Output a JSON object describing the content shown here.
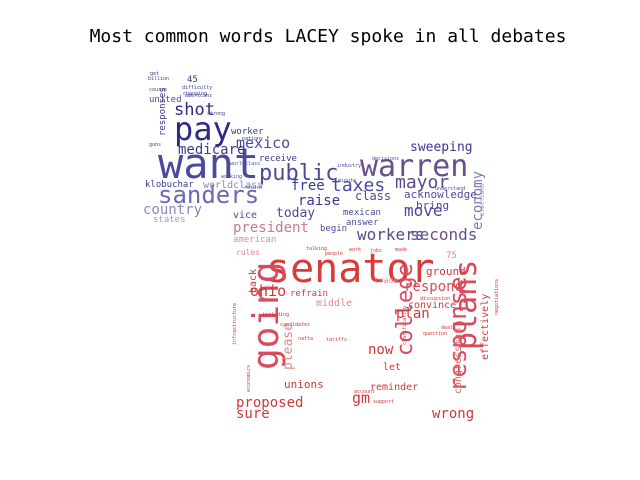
{
  "chart_data": {
    "type": "wordcloud",
    "title": "Most common words LACEY spoke in all debates",
    "words": [
      {
        "text": "want",
        "weight": 100,
        "color": "#4b4a9c"
      },
      {
        "text": "pay",
        "weight": 80,
        "color": "#2b2a86"
      },
      {
        "text": "warren",
        "weight": 80,
        "color": "#6a4f8e"
      },
      {
        "text": "sanders",
        "weight": 70,
        "color": "#6a68b4"
      },
      {
        "text": "shot",
        "weight": 45,
        "color": "#2b2a86"
      },
      {
        "text": "public",
        "weight": 50,
        "color": "#4b4a9c"
      },
      {
        "text": "mexico",
        "weight": 42,
        "color": "#4b4a9c"
      },
      {
        "text": "medicare",
        "weight": 40,
        "color": "#3a3990"
      },
      {
        "text": "taxes",
        "weight": 48,
        "color": "#4b4a9c"
      },
      {
        "text": "mayor",
        "weight": 46,
        "color": "#5a4a8a"
      },
      {
        "text": "free",
        "weight": 38,
        "color": "#3a3990"
      },
      {
        "text": "raise",
        "weight": 36,
        "color": "#3a3990"
      },
      {
        "text": "sweeping",
        "weight": 32,
        "color": "#3a3990"
      },
      {
        "text": "country",
        "weight": 34,
        "color": "#8a8ab8"
      },
      {
        "text": "economy",
        "weight": 30,
        "color": "#7a7ab0"
      },
      {
        "text": "today",
        "weight": 34,
        "color": "#4b4a9c"
      },
      {
        "text": "move",
        "weight": 40,
        "color": "#4b4a9c"
      },
      {
        "text": "workers",
        "weight": 40,
        "color": "#5a4a8a"
      },
      {
        "text": "seconds",
        "weight": 40,
        "color": "#6a4f8e"
      },
      {
        "text": "president",
        "weight": 38,
        "color": "#c87a8a"
      },
      {
        "text": "senator",
        "weight": 100,
        "color": "#d93a3a"
      },
      {
        "text": "going",
        "weight": 80,
        "color": "#d94a5a"
      },
      {
        "text": "plans",
        "weight": 60,
        "color": "#d94a5a"
      },
      {
        "text": "college",
        "weight": 52,
        "color": "#d94a5a"
      },
      {
        "text": "response",
        "weight": 50,
        "color": "#d94a5a"
      },
      {
        "text": "respond",
        "weight": 36,
        "color": "#d94a5a"
      },
      {
        "text": "ohio",
        "weight": 36,
        "color": "#cc3a3a"
      },
      {
        "text": "plan",
        "weight": 34,
        "color": "#cc3a3a"
      },
      {
        "text": "proposed",
        "weight": 34,
        "color": "#cc3a3a"
      },
      {
        "text": "sure",
        "weight": 34,
        "color": "#cc3a3a"
      },
      {
        "text": "gm",
        "weight": 34,
        "color": "#cc3a3a"
      },
      {
        "text": "now",
        "weight": 34,
        "color": "#cc3a3a"
      },
      {
        "text": "wrong",
        "weight": 32,
        "color": "#cc3a3a"
      },
      {
        "text": "please",
        "weight": 30,
        "color": "#e08a8a"
      },
      {
        "text": "unions",
        "weight": 26,
        "color": "#cc3a3a"
      },
      {
        "text": "ground",
        "weight": 26,
        "color": "#cc3a3a"
      },
      {
        "text": "convince",
        "weight": 24,
        "color": "#cc3a3a"
      },
      {
        "text": "effectively",
        "weight": 22,
        "color": "#cc3a3a"
      },
      {
        "text": "congressman",
        "weight": 22,
        "color": "#d96a6a"
      },
      {
        "text": "refrain",
        "weight": 22,
        "color": "#cc3a3a"
      },
      {
        "text": "middle",
        "weight": 22,
        "color": "#e08a8a"
      },
      {
        "text": "reminder",
        "weight": 22,
        "color": "#cc3a3a"
      },
      {
        "text": "let",
        "weight": 22,
        "color": "#cc3a3a"
      },
      {
        "text": "back",
        "weight": 22,
        "color": "#cc3a3a"
      },
      {
        "text": "klobuchar",
        "weight": 22,
        "color": "#3a3990"
      },
      {
        "text": "worldclass",
        "weight": 22,
        "color": "#8a8ab8"
      },
      {
        "text": "receive",
        "weight": 22,
        "color": "#3a3990"
      },
      {
        "text": "class",
        "weight": 26,
        "color": "#4b4a9c"
      },
      {
        "text": "acknowledge",
        "weight": 24,
        "color": "#4b4a9c"
      },
      {
        "text": "bring",
        "weight": 24,
        "color": "#4b4a9c"
      },
      {
        "text": "united",
        "weight": 22,
        "color": "#4b4a9c"
      },
      {
        "text": "states",
        "weight": 22,
        "color": "#9a9ac8"
      },
      {
        "text": "vice",
        "weight": 22,
        "color": "#4b4a9c"
      },
      {
        "text": "begin",
        "weight": 22,
        "color": "#4b4a9c"
      },
      {
        "text": "mexican",
        "weight": 22,
        "color": "#4b4a9c"
      },
      {
        "text": "answer",
        "weight": 22,
        "color": "#4b4a9c"
      },
      {
        "text": "american",
        "weight": 22,
        "color": "#e08a8a"
      },
      {
        "text": "worker",
        "weight": 20,
        "color": "#3a3990"
      },
      {
        "text": "responses",
        "weight": 20,
        "color": "#3a3990"
      },
      {
        "text": "45",
        "weight": 20,
        "color": "#3a3990"
      },
      {
        "text": "75",
        "weight": 20,
        "color": "#e08a8a"
      },
      {
        "text": "trade",
        "weight": 20,
        "color": "#e08a8a"
      },
      {
        "text": "rules",
        "weight": 20,
        "color": "#e08a8a"
      },
      {
        "text": "difficulty",
        "weight": 12,
        "color": "#3a3990"
      },
      {
        "text": "changing",
        "weight": 12,
        "color": "#3a3990"
      },
      {
        "text": "strong",
        "weight": 12,
        "color": "#3a3990"
      },
      {
        "text": "question",
        "weight": 12,
        "color": "#cc3a3a"
      },
      {
        "text": "clarification",
        "weight": 12,
        "color": "#cc3a3a"
      },
      {
        "text": "including",
        "weight": 12,
        "color": "#cc3a3a"
      },
      {
        "text": "candidates",
        "weight": 12,
        "color": "#cc3a3a"
      },
      {
        "text": "industry",
        "weight": 12,
        "color": "#4b4a9c"
      },
      {
        "text": "worldclass",
        "weight": 12,
        "color": "#4b4a9c"
      },
      {
        "text": "minute",
        "weight": 12,
        "color": "#4b4a9c"
      },
      {
        "text": "understand",
        "weight": 12,
        "color": "#4b4a9c"
      },
      {
        "text": "decisions",
        "weight": 12,
        "color": "#4b4a9c"
      },
      {
        "text": "elections",
        "weight": 12,
        "color": "#8a8ab8"
      },
      {
        "text": "negotiations",
        "weight": 12,
        "color": "#cc3a3a"
      },
      {
        "text": "infrastructure",
        "weight": 12,
        "color": "#cc3a3a"
      },
      {
        "text": "economics",
        "weight": 12,
        "color": "#cc3a3a"
      },
      {
        "text": "discussion",
        "weight": 12,
        "color": "#cc3a3a"
      },
      {
        "text": "account",
        "weight": 12,
        "color": "#cc3a3a"
      },
      {
        "text": "support",
        "weight": 12,
        "color": "#cc3a3a"
      },
      {
        "text": "return",
        "weight": 12,
        "color": "#4b4a9c"
      },
      {
        "text": "billion",
        "weight": 12,
        "color": "#3a3990"
      },
      {
        "text": "course",
        "weight": 12,
        "color": "#3a3990"
      },
      {
        "text": "americans",
        "weight": 12,
        "color": "#3a3990"
      },
      {
        "text": "nations",
        "weight": 12,
        "color": "#3a3990"
      },
      {
        "text": "working",
        "weight": 12,
        "color": "#4b4a9c"
      },
      {
        "text": "talking",
        "weight": 12,
        "color": "#cc3a3a"
      },
      {
        "text": "people",
        "weight": 12,
        "color": "#cc3a3a"
      },
      {
        "text": "work",
        "weight": 12,
        "color": "#cc3a3a"
      },
      {
        "text": "jobs",
        "weight": 12,
        "color": "#cc3a3a"
      },
      {
        "text": "made",
        "weight": 12,
        "color": "#cc3a3a"
      },
      {
        "text": "guns",
        "weight": 12,
        "color": "#3a3990"
      },
      {
        "text": "get",
        "weight": 12,
        "color": "#3a3990"
      },
      {
        "text": "nafta",
        "weight": 12,
        "color": "#cc3a3a"
      },
      {
        "text": "tariffs",
        "weight": 12,
        "color": "#cc3a3a"
      },
      {
        "text": "deal",
        "weight": 12,
        "color": "#cc3a3a"
      }
    ]
  }
}
